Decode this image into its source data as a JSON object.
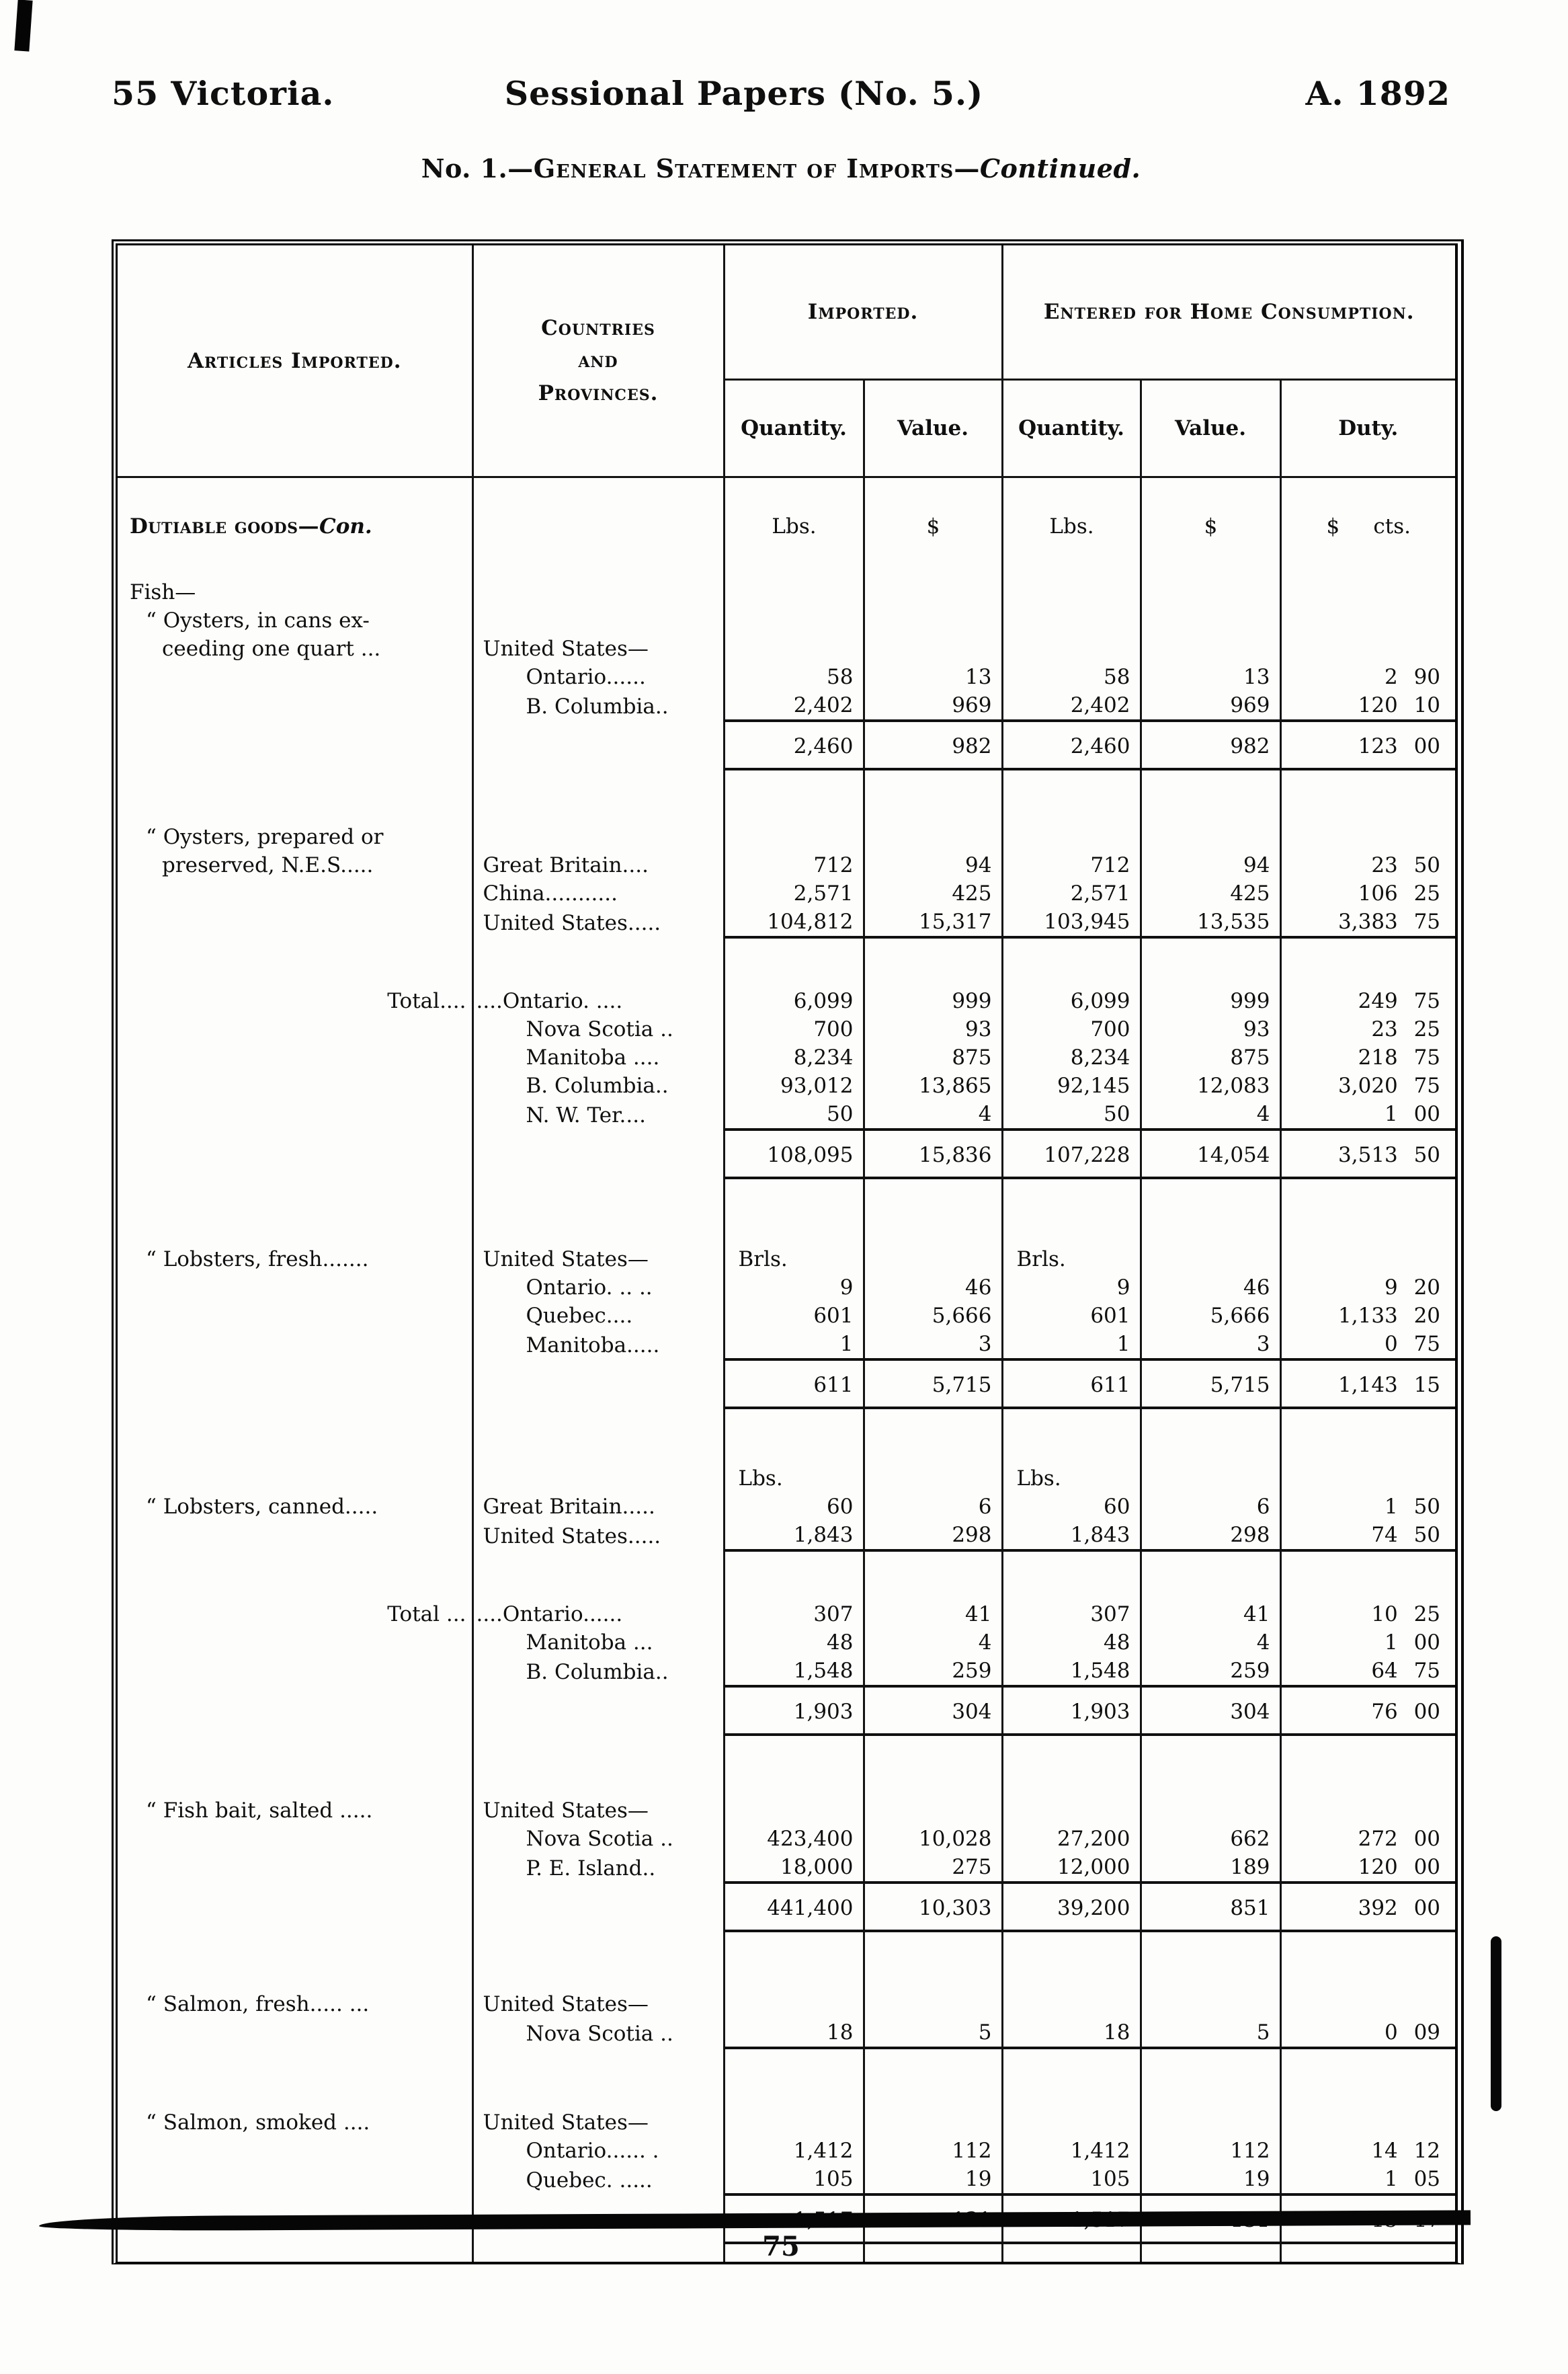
{
  "page": {
    "header_left": "55 Victoria.",
    "header_center": "Sessional Papers (No. 5.)",
    "header_right": "A. 1892",
    "title_no": "No. 1.—",
    "title_main": "General Statement of Imports",
    "title_sep": "—",
    "title_cont": "Continued.",
    "page_number": "75"
  },
  "table": {
    "headers": {
      "articles": "Articles Imported.",
      "countries": "Countries\nand\nProvinces.",
      "imported": "Imported.",
      "home": "Entered for Home Consumption.",
      "quantity1": "Quantity.",
      "value1": "Value.",
      "quantity2": "Quantity.",
      "value2": "Value.",
      "duty": "Duty."
    },
    "units_label": "Dutiable goods—",
    "units_label_con": "Con.",
    "rows": [
      {
        "t": "sp",
        "h": 52
      },
      {
        "t": "units",
        "n": [
          "Lbs.",
          "$",
          "Lbs.",
          "$",
          "$ cts."
        ]
      },
      {
        "t": "sp",
        "h": 56
      },
      {
        "a": "Fish—"
      },
      {
        "a": "“ Oysters, in cans ex-",
        "ac": "q"
      },
      {
        "a": "ceeding one quart ...",
        "ac": "ind",
        "c": "United States—"
      },
      {
        "c": "Ontario......",
        "cc": "ind",
        "n": [
          "58",
          "13",
          "58",
          "13",
          "2 90"
        ]
      },
      {
        "c": "B. Columbia..",
        "cc": "ind",
        "n": [
          "2,402",
          "969",
          "2,402",
          "969",
          "120 10"
        ]
      },
      {
        "t": "sub",
        "n": [
          "2,460",
          "982",
          "2,460",
          "982",
          "123 00"
        ]
      },
      {
        "t": "sp",
        "h": 80
      },
      {
        "a": "“ Oysters, prepared or",
        "ac": "q"
      },
      {
        "a": "preserved, N.E.S.....",
        "ac": "ind",
        "c": "Great Britain....",
        "n": [
          "712",
          "94",
          "712",
          "94",
          "23 50"
        ]
      },
      {
        "c": "China...........",
        "n": [
          "2,571",
          "425",
          "2,571",
          "425",
          "106 25"
        ]
      },
      {
        "c": "United States.....",
        "n": [
          "104,812",
          "15,317",
          "103,945",
          "13,535",
          "3,383 75"
        ]
      },
      {
        "t": "rule",
        "h": 74
      },
      {
        "a": "Total....",
        "ac": "tot",
        "c": "....Ontario. ....",
        "cc": "dots",
        "n": [
          "6,099",
          "999",
          "6,099",
          "999",
          "249 75"
        ]
      },
      {
        "c": "Nova Scotia ..",
        "cc": "ind",
        "n": [
          "700",
          "93",
          "700",
          "93",
          "23 25"
        ]
      },
      {
        "c": "Manitoba ....",
        "cc": "ind",
        "n": [
          "8,234",
          "875",
          "8,234",
          "875",
          "218 75"
        ]
      },
      {
        "c": "B. Columbia..",
        "cc": "ind",
        "n": [
          "93,012",
          "13,865",
          "92,145",
          "12,083",
          "3,020 75"
        ]
      },
      {
        "c": "N. W. Ter....",
        "cc": "ind",
        "n": [
          "50",
          "4",
          "50",
          "4",
          "1 00"
        ]
      },
      {
        "t": "sub",
        "n": [
          "108,095",
          "15,836",
          "107,228",
          "14,054",
          "3,513 50"
        ]
      },
      {
        "t": "sp",
        "h": 100
      },
      {
        "a": "“ Lobsters, fresh.......",
        "ac": "q",
        "c": "United States—",
        "u": 1,
        "n": [
          "Brls.",
          "",
          "Brls.",
          "",
          ""
        ]
      },
      {
        "c": "Ontario. .. ..",
        "cc": "ind",
        "n": [
          "9",
          "46",
          "9",
          "46",
          "9 20"
        ]
      },
      {
        "c": "Quebec....",
        "cc": "ind",
        "n": [
          "601",
          "5,666",
          "601",
          "5,666",
          "1,133 20"
        ]
      },
      {
        "c": "Manitoba.....",
        "cc": "ind",
        "n": [
          "1",
          "3",
          "1",
          "3",
          "0 75"
        ]
      },
      {
        "t": "sub",
        "n": [
          "611",
          "5,715",
          "611",
          "5,715",
          "1,143 15"
        ]
      },
      {
        "t": "sp",
        "h": 84
      },
      {
        "u": 1,
        "n": [
          "Lbs.",
          "",
          "Lbs.",
          "",
          ""
        ]
      },
      {
        "a": "“ Lobsters, canned.....",
        "ac": "q",
        "c": "Great Britain.....",
        "n": [
          "60",
          "6",
          "60",
          "6",
          "1 50"
        ]
      },
      {
        "c": "United States.....",
        "n": [
          "1,843",
          "298",
          "1,843",
          "298",
          "74 50"
        ]
      },
      {
        "t": "rule",
        "h": 74
      },
      {
        "a": "Total ...",
        "ac": "tot",
        "c": "....Ontario......",
        "cc": "dots",
        "n": [
          "307",
          "41",
          "307",
          "41",
          "10 25"
        ]
      },
      {
        "c": "Manitoba ...",
        "cc": "ind",
        "n": [
          "48",
          "4",
          "48",
          "4",
          "1 00"
        ]
      },
      {
        "c": "B. Columbia..",
        "cc": "ind",
        "n": [
          "1,548",
          "259",
          "1,548",
          "259",
          "64 75"
        ]
      },
      {
        "t": "sub",
        "n": [
          "1,903",
          "304",
          "1,903",
          "304",
          "76 00"
        ]
      },
      {
        "t": "sp",
        "h": 92
      },
      {
        "a": "“ Fish bait, salted .....",
        "ac": "q",
        "c": "United States—"
      },
      {
        "c": "Nova Scotia ..",
        "cc": "ind",
        "n": [
          "423,400",
          "10,028",
          "27,200",
          "662",
          "272 00"
        ]
      },
      {
        "c": "P. E. Island..",
        "cc": "ind",
        "n": [
          "18,000",
          "275",
          "12,000",
          "189",
          "120 00"
        ]
      },
      {
        "t": "sub",
        "n": [
          "441,400",
          "10,303",
          "39,200",
          "851",
          "392 00"
        ]
      },
      {
        "t": "sp",
        "h": 88
      },
      {
        "a": "“ Salmon, fresh..... ...",
        "ac": "q",
        "c": "United States—"
      },
      {
        "c": "Nova Scotia ..",
        "cc": "ind",
        "n": [
          "18",
          "5",
          "18",
          "5",
          "0 09"
        ]
      },
      {
        "t": "rule",
        "h": 46
      },
      {
        "t": "sp",
        "h": 44
      },
      {
        "a": "“ Salmon, smoked ....",
        "ac": "q",
        "c": "United States—"
      },
      {
        "c": "Ontario...... .",
        "cc": "ind",
        "n": [
          "1,412",
          "112",
          "1,412",
          "112",
          "14 12"
        ]
      },
      {
        "c": "Quebec. .....",
        "cc": "ind",
        "n": [
          "105",
          "19",
          "105",
          "19",
          "1 05"
        ]
      },
      {
        "t": "sub",
        "n": [
          "1,517",
          "131",
          "1,517",
          "131",
          "15 17"
        ]
      },
      {
        "t": "sp",
        "h": 28
      }
    ]
  }
}
